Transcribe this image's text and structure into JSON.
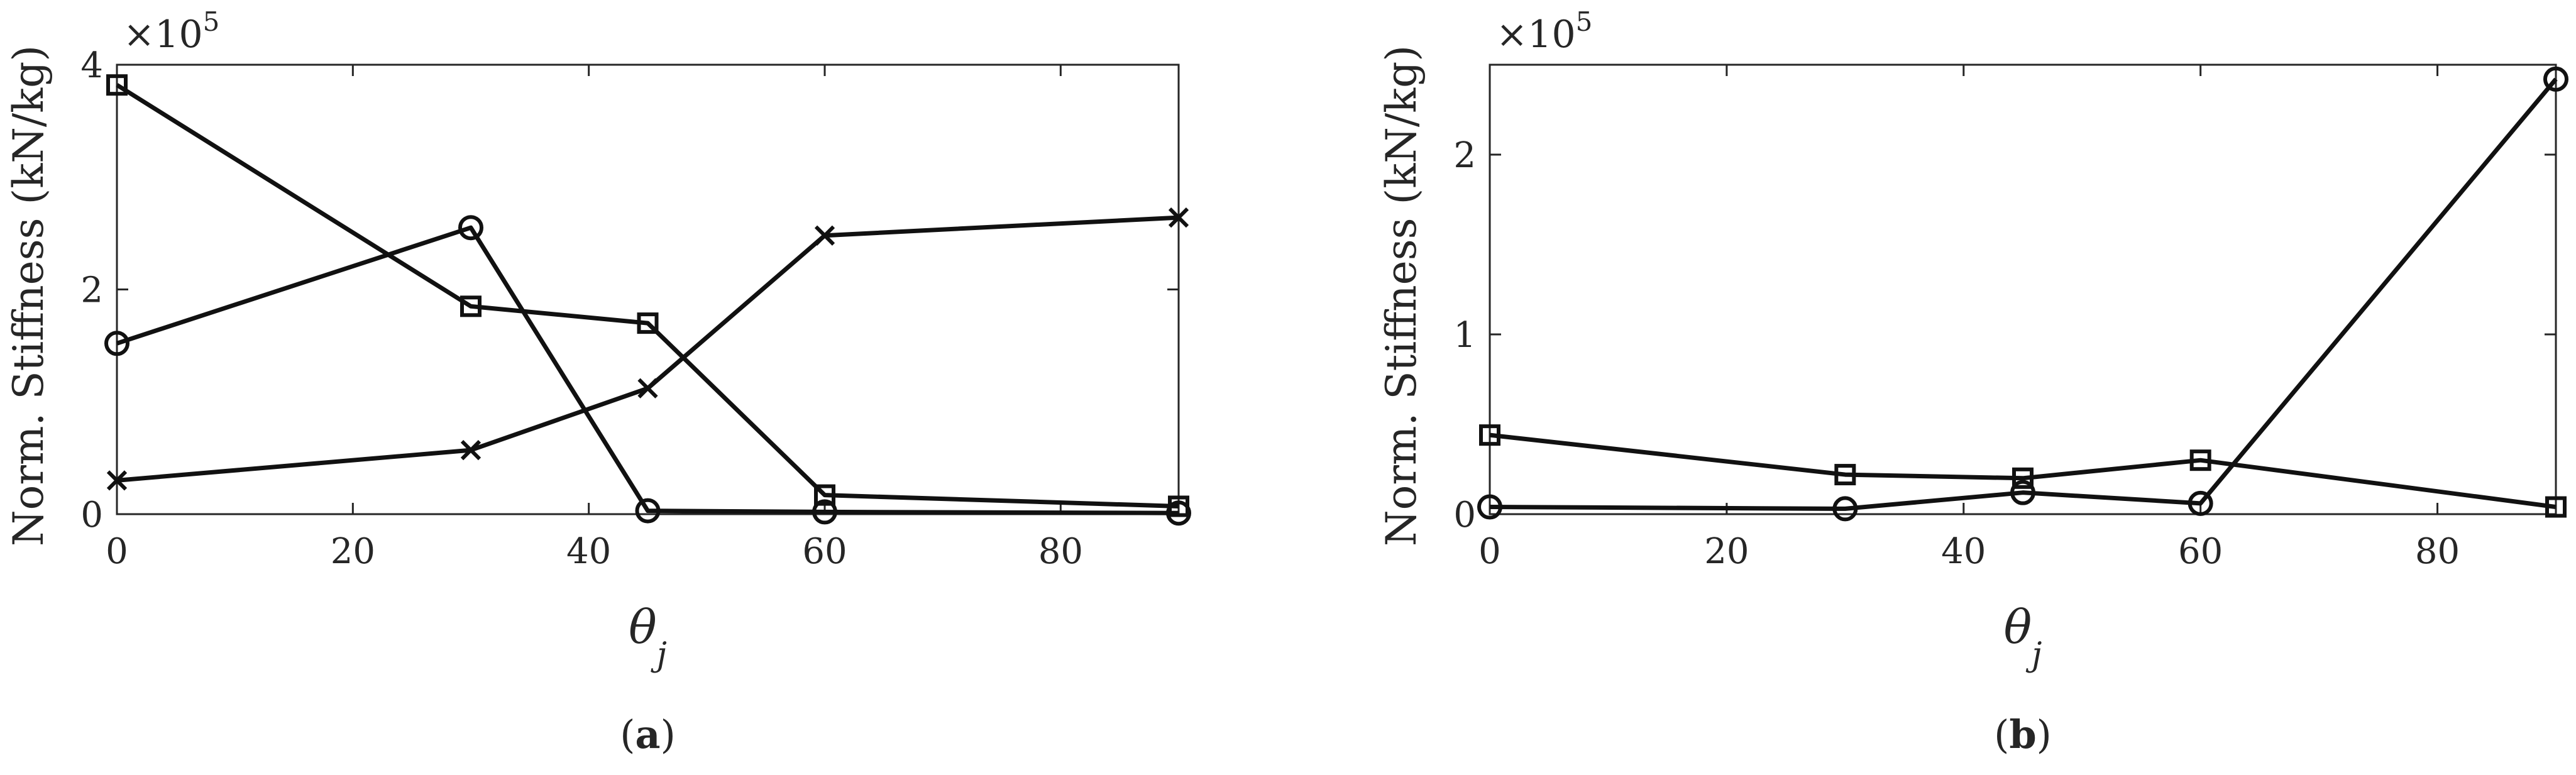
{
  "chart_data": [
    {
      "type": "line",
      "panel_label": "a",
      "xlabel": "θ",
      "xlabel_subscript": "j",
      "ylabel": "Norm. Stiffness (kN/kg)",
      "y_exponent": "×10",
      "y_exponent_power": "5",
      "xlim": [
        0,
        90
      ],
      "ylim": [
        0,
        4
      ],
      "xticks": [
        0,
        20,
        40,
        60,
        80
      ],
      "yticks": [
        0,
        2,
        4
      ],
      "x": [
        0,
        30,
        45,
        60,
        90
      ],
      "series": [
        {
          "marker": "square",
          "values": [
            3.82,
            1.85,
            1.7,
            0.17,
            0.07
          ]
        },
        {
          "marker": "circle",
          "values": [
            1.52,
            2.55,
            0.03,
            0.02,
            0.01
          ]
        },
        {
          "marker": "x",
          "values": [
            0.3,
            0.57,
            1.12,
            2.48,
            2.64
          ]
        }
      ]
    },
    {
      "type": "line",
      "panel_label": "b",
      "xlabel": "θ",
      "xlabel_subscript": "j",
      "ylabel": "Norm. Stiffness (kN/kg)",
      "y_exponent": "×10",
      "y_exponent_power": "5",
      "xlim": [
        0,
        90
      ],
      "ylim": [
        0,
        2.5
      ],
      "xticks": [
        0,
        20,
        40,
        60,
        80
      ],
      "yticks": [
        0,
        1,
        2
      ],
      "x": [
        0,
        30,
        45,
        60,
        90
      ],
      "series": [
        {
          "marker": "square",
          "values": [
            0.44,
            0.22,
            0.2,
            0.3,
            0.04
          ]
        },
        {
          "marker": "circle",
          "values": [
            0.04,
            0.03,
            0.12,
            0.06,
            2.42
          ]
        }
      ]
    }
  ]
}
